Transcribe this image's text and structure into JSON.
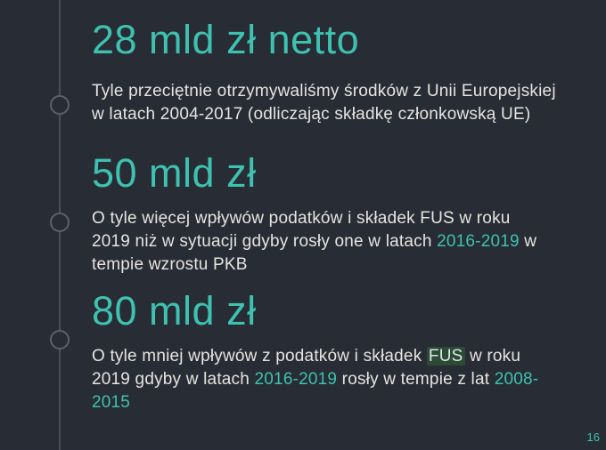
{
  "page": {
    "page_number": "16",
    "colors": {
      "background": "#282c34",
      "accent": "#3ec1b1",
      "body_text": "#e6e4e1",
      "timeline": "#4a505a",
      "highlight_background": "#2d4a39",
      "highlight_text": "#d9e7dc"
    }
  },
  "sections": [
    {
      "heading": "28 mld zł netto",
      "body": [
        {
          "style": "normal",
          "text": "Tyle przeciętnie otrzymywaliśmy środków z Unii Europejskiej\nw latach 2004-2017 (odliczając składkę członkowską UE)"
        }
      ]
    },
    {
      "heading": "50 mld zł",
      "body": [
        {
          "style": "normal",
          "text": "O tyle więcej wpływów podatków i składek FUS w roku\n2019 niż w sytuacji gdyby rosły one w latach "
        },
        {
          "style": "accent",
          "text": "2016-2019"
        },
        {
          "style": "normal",
          "text": " w\ntempie wzrostu PKB"
        }
      ]
    },
    {
      "heading": "80 mld zł",
      "body": [
        {
          "style": "normal",
          "text": "O tyle mniej wpływów z podatków i składek "
        },
        {
          "style": "highlight",
          "text": "FUS"
        },
        {
          "style": "normal",
          "text": " w roku\n2019 gdyby w latach "
        },
        {
          "style": "accent",
          "text": "2016-2019"
        },
        {
          "style": "normal",
          "text": " rosły w tempie z lat "
        },
        {
          "style": "accent",
          "text": "2008-\n2015"
        }
      ]
    }
  ]
}
